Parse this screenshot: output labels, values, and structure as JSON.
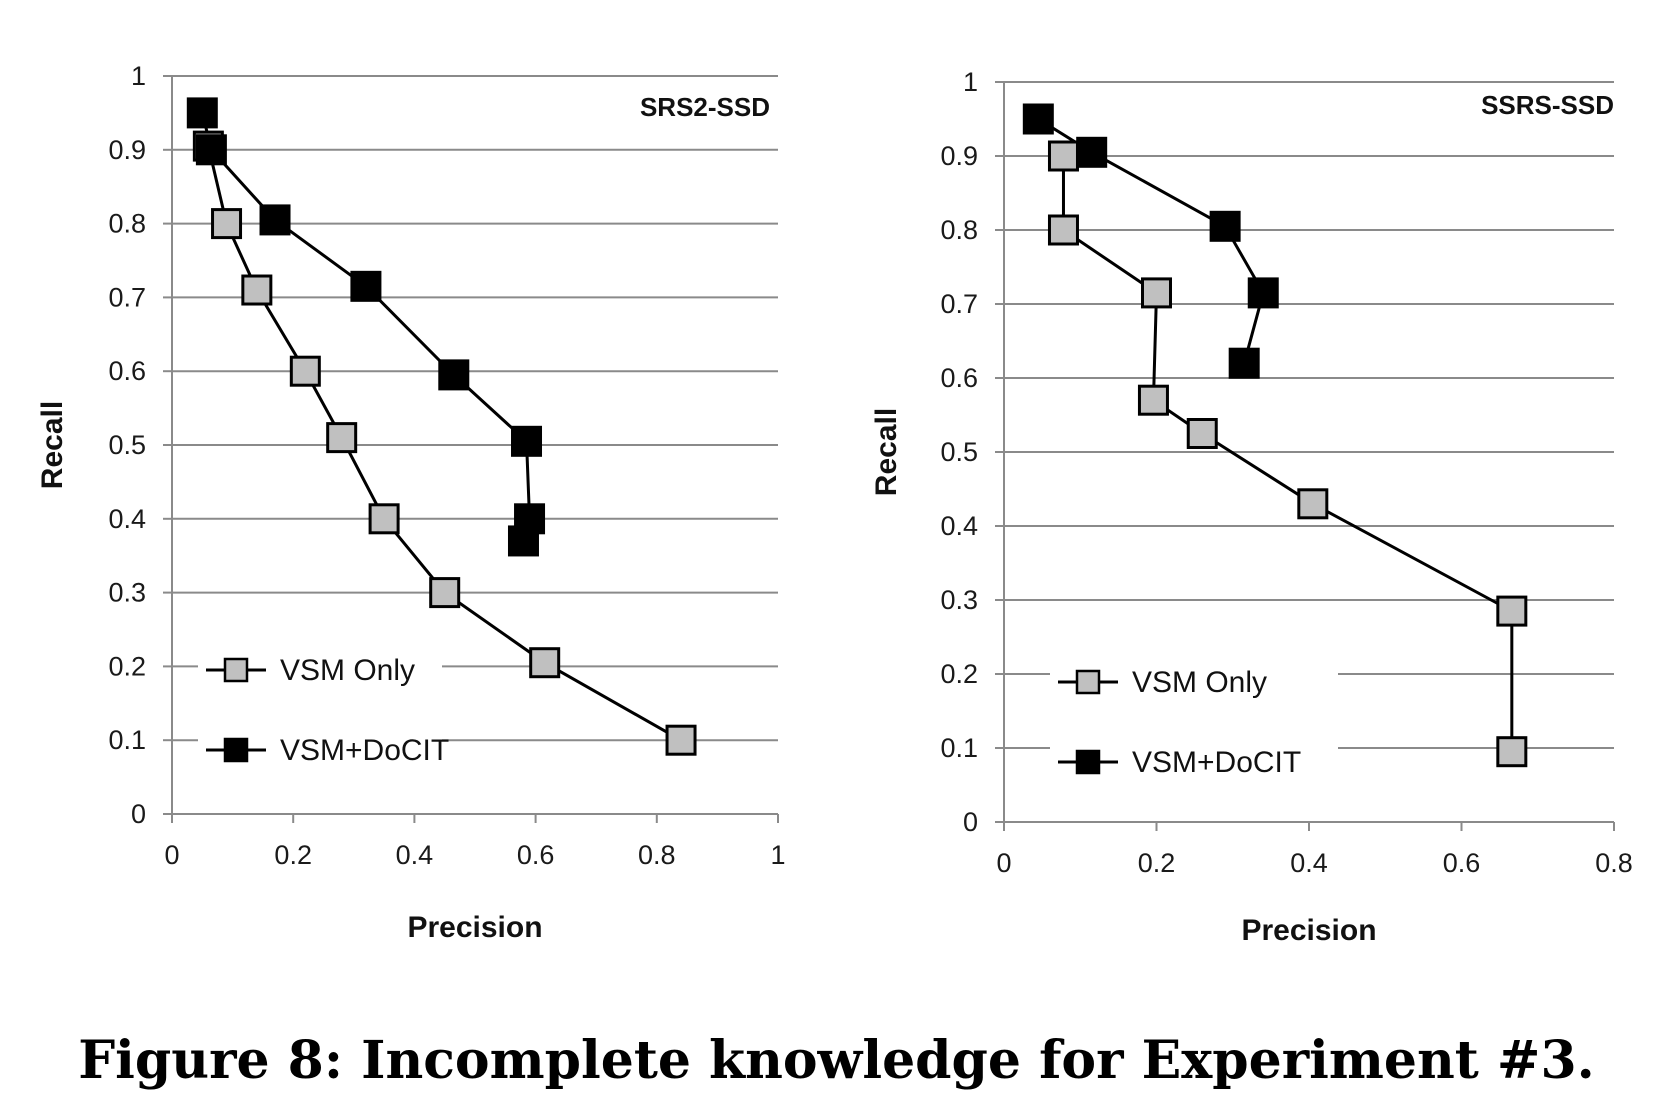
{
  "chart_data": [
    {
      "type": "line",
      "title": "SRS2-SSD",
      "xlabel": "Precision",
      "ylabel": "Recall",
      "xlim": [
        0,
        1
      ],
      "ylim": [
        0,
        1
      ],
      "xticks": [
        "0",
        "0.2",
        "0.4",
        "0.6",
        "0.8",
        "1"
      ],
      "yticks": [
        "0",
        "0.1",
        "0.2",
        "0.3",
        "0.4",
        "0.5",
        "0.6",
        "0.7",
        "0.8",
        "0.9",
        "1"
      ],
      "grid": true,
      "legend_position": "bottom-left",
      "series": [
        {
          "name": "VSM Only",
          "color": "#c0c0c0",
          "points": [
            [
              0.06,
              0.905
            ],
            [
              0.09,
              0.8
            ],
            [
              0.14,
              0.71
            ],
            [
              0.22,
              0.6
            ],
            [
              0.28,
              0.51
            ],
            [
              0.35,
              0.4
            ],
            [
              0.45,
              0.3
            ],
            [
              0.615,
              0.205
            ],
            [
              0.84,
              0.1
            ]
          ]
        },
        {
          "name": "VSM+DoCIT",
          "color": "#000000",
          "points": [
            [
              0.05,
              0.95
            ],
            [
              0.065,
              0.9
            ],
            [
              0.17,
              0.805
            ],
            [
              0.32,
              0.715
            ],
            [
              0.465,
              0.595
            ],
            [
              0.585,
              0.505
            ],
            [
              0.59,
              0.4
            ],
            [
              0.58,
              0.37
            ]
          ]
        }
      ]
    },
    {
      "type": "line",
      "title": "SSRS-SSD",
      "xlabel": "Precision",
      "ylabel": "Recall",
      "xlim": [
        0,
        0.8
      ],
      "ylim": [
        0,
        1
      ],
      "xticks": [
        "0",
        "0.2",
        "0.4",
        "0.6",
        "0.8"
      ],
      "yticks": [
        "0",
        "0.1",
        "0.2",
        "0.3",
        "0.4",
        "0.5",
        "0.6",
        "0.7",
        "0.8",
        "0.9",
        "1"
      ],
      "grid": true,
      "legend_position": "bottom-left",
      "series": [
        {
          "name": "VSM Only",
          "color": "#c0c0c0",
          "points": [
            [
              0.078,
              0.9
            ],
            [
              0.078,
              0.8
            ],
            [
              0.2,
              0.715
            ],
            [
              0.196,
              0.57
            ],
            [
              0.26,
              0.525
            ],
            [
              0.405,
              0.43
            ],
            [
              0.666,
              0.285
            ],
            [
              0.666,
              0.095
            ]
          ]
        },
        {
          "name": "VSM+DoCIT",
          "color": "#000000",
          "points": [
            [
              0.045,
              0.95
            ],
            [
              0.115,
              0.905
            ],
            [
              0.29,
              0.805
            ],
            [
              0.34,
              0.715
            ],
            [
              0.315,
              0.62
            ]
          ]
        }
      ]
    }
  ],
  "caption": "Figure 8:  Incomplete knowledge for Experiment #3."
}
